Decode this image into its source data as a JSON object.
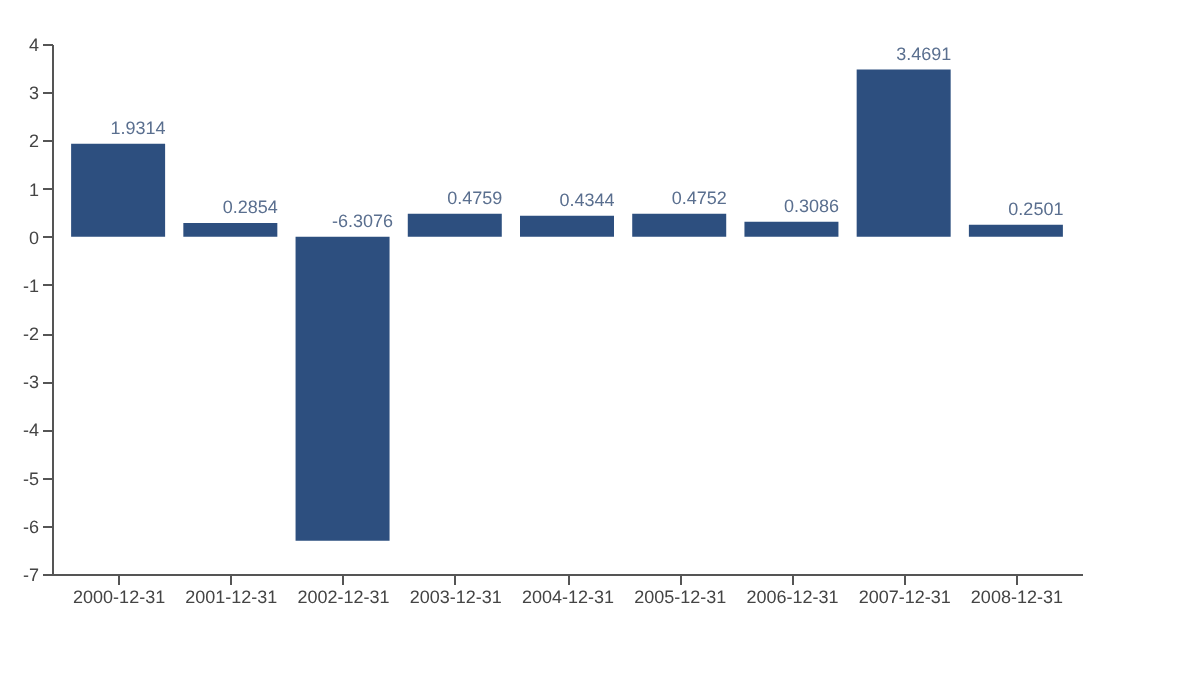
{
  "chart_data": {
    "type": "bar",
    "categories": [
      "2000-12-31",
      "2001-12-31",
      "2002-12-31",
      "2003-12-31",
      "2004-12-31",
      "2005-12-31",
      "2006-12-31",
      "2007-12-31",
      "2008-12-31"
    ],
    "series": [
      {
        "color": "#2d4f7f",
        "values": [
          1.9314,
          0.2854,
          -6.3076,
          0.4759,
          0.4344,
          0.4752,
          0.3086,
          3.4691,
          0.2501
        ]
      }
    ],
    "ylim": [
      -7,
      4
    ],
    "yticks": [
      -7,
      -6,
      -5,
      -4,
      -3,
      -2,
      -1,
      0,
      1,
      2,
      3,
      4
    ],
    "data_labels": true,
    "grid": false
  }
}
